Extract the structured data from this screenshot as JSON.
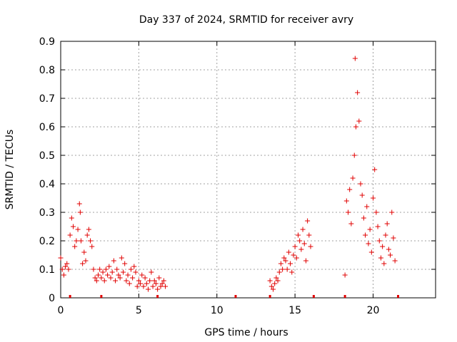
{
  "chart_data": {
    "type": "scatter",
    "title": "Day 337 of 2024, SRMTID for receiver avry",
    "xlabel": "GPS time / hours",
    "ylabel": "SRMTID / TECUs",
    "xlim": [
      0,
      24
    ],
    "ylim": [
      0,
      0.9
    ],
    "xticks": [
      0,
      5,
      10,
      15,
      20
    ],
    "yticks": [
      0,
      0.1,
      0.2,
      0.3,
      0.4,
      0.5,
      0.6,
      0.7,
      0.8,
      0.9
    ],
    "grid": true,
    "marker": "+",
    "color": "#e00000",
    "series": [
      {
        "name": "SRMTID",
        "x": [
          0.0,
          0.1,
          0.2,
          0.3,
          0.4,
          0.5,
          0.6,
          0.7,
          0.8,
          0.9,
          1.0,
          1.1,
          1.2,
          1.25,
          1.3,
          1.4,
          1.5,
          1.6,
          1.7,
          1.8,
          1.9,
          2.0,
          2.1,
          2.2,
          2.3,
          2.4,
          2.5,
          2.6,
          2.7,
          2.8,
          2.9,
          3.0,
          3.1,
          3.2,
          3.3,
          3.4,
          3.5,
          3.6,
          3.7,
          3.8,
          3.9,
          4.0,
          4.1,
          4.2,
          4.3,
          4.4,
          4.5,
          4.6,
          4.7,
          4.8,
          4.9,
          5.0,
          5.1,
          5.2,
          5.3,
          5.4,
          5.5,
          5.6,
          5.7,
          5.8,
          5.9,
          6.0,
          6.1,
          6.2,
          6.3,
          6.4,
          6.5,
          6.6,
          6.7,
          13.4,
          13.5,
          13.6,
          13.7,
          13.8,
          13.9,
          14.0,
          14.1,
          14.2,
          14.3,
          14.4,
          14.5,
          14.6,
          14.7,
          14.8,
          14.9,
          15.0,
          15.1,
          15.2,
          15.3,
          15.4,
          15.5,
          15.6,
          15.7,
          15.8,
          15.9,
          16.0,
          18.2,
          18.3,
          18.4,
          18.5,
          18.6,
          18.7,
          18.8,
          18.85,
          18.9,
          19.0,
          19.1,
          19.2,
          19.3,
          19.4,
          19.5,
          19.6,
          19.7,
          19.8,
          19.9,
          20.0,
          20.1,
          20.2,
          20.3,
          20.4,
          20.5,
          20.6,
          20.7,
          20.8,
          20.9,
          21.0,
          21.1,
          21.2,
          21.3,
          21.4
        ],
        "y": [
          0.14,
          0.1,
          0.08,
          0.11,
          0.12,
          0.1,
          0.22,
          0.28,
          0.25,
          0.18,
          0.2,
          0.24,
          0.33,
          0.3,
          0.2,
          0.12,
          0.16,
          0.13,
          0.22,
          0.24,
          0.2,
          0.18,
          0.1,
          0.07,
          0.06,
          0.08,
          0.1,
          0.07,
          0.09,
          0.06,
          0.1,
          0.08,
          0.11,
          0.07,
          0.09,
          0.13,
          0.06,
          0.1,
          0.08,
          0.07,
          0.14,
          0.09,
          0.12,
          0.06,
          0.08,
          0.05,
          0.1,
          0.07,
          0.11,
          0.09,
          0.04,
          0.06,
          0.05,
          0.08,
          0.04,
          0.07,
          0.05,
          0.03,
          0.06,
          0.09,
          0.04,
          0.06,
          0.05,
          0.03,
          0.07,
          0.04,
          0.05,
          0.06,
          0.04,
          0.06,
          0.04,
          0.03,
          0.05,
          0.07,
          0.06,
          0.09,
          0.12,
          0.1,
          0.14,
          0.13,
          0.1,
          0.16,
          0.12,
          0.09,
          0.15,
          0.18,
          0.14,
          0.22,
          0.2,
          0.17,
          0.24,
          0.19,
          0.13,
          0.27,
          0.22,
          0.18,
          0.08,
          0.34,
          0.3,
          0.38,
          0.26,
          0.42,
          0.5,
          0.84,
          0.6,
          0.72,
          0.62,
          0.4,
          0.36,
          0.28,
          0.22,
          0.32,
          0.19,
          0.24,
          0.16,
          0.35,
          0.45,
          0.3,
          0.25,
          0.2,
          0.14,
          0.18,
          0.12,
          0.22,
          0.26,
          0.17,
          0.15,
          0.3,
          0.21,
          0.13
        ]
      }
    ],
    "data_gap_markers_x": [
      0.6,
      2.6,
      6.2,
      11.2,
      13.4,
      16.2,
      18.2,
      21.6
    ]
  }
}
